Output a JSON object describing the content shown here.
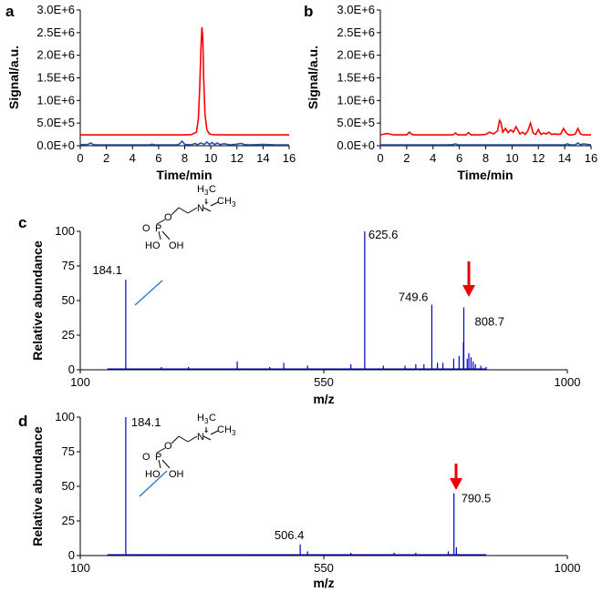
{
  "chart_data": [
    {
      "id": "a",
      "panel_label": "a",
      "type": "line",
      "xlabel": "Time/min",
      "ylabel": "Signal/a.u.",
      "xlim": [
        0,
        16
      ],
      "ylim": [
        0,
        3000000
      ],
      "x_ticks": [
        "0",
        "2",
        "4",
        "6",
        "8",
        "10",
        "12",
        "14",
        "16"
      ],
      "y_ticks": [
        "0.0E+0",
        "5.0E+5",
        "1.0E+6",
        "1.5E+6",
        "2.0E+6",
        "2.5E+6",
        "3.0E+6"
      ],
      "grid": false,
      "series": [
        {
          "color": "#ff0000",
          "x": [
            0,
            7,
            8,
            8.5,
            8.9,
            9.05,
            9.15,
            9.25,
            9.32,
            9.38,
            9.45,
            9.55,
            9.7,
            9.9,
            10.2,
            11,
            16
          ],
          "y": [
            240000,
            240000,
            240000,
            245000,
            300000,
            600000,
            1300000,
            2200000,
            2620000,
            2400000,
            1500000,
            700000,
            350000,
            260000,
            242000,
            240000,
            240000
          ]
        },
        {
          "color": "#2255aa",
          "x": [
            0,
            0.6,
            0.8,
            1.0,
            1.3,
            2,
            3,
            4,
            5.3,
            5.5,
            5.7,
            6,
            7.4,
            7.6,
            7.8,
            8.0,
            8.5,
            8.8,
            9.0,
            9.2,
            9.5,
            9.7,
            9.9,
            10.1,
            10.3,
            10.5,
            10.7,
            11.0,
            11.5,
            12.0,
            12.3,
            12.6,
            13,
            14,
            15,
            16
          ],
          "y": [
            25000,
            30000,
            60000,
            25000,
            20000,
            20000,
            20000,
            20000,
            20000,
            35000,
            20000,
            20000,
            20000,
            40000,
            100000,
            30000,
            20000,
            50000,
            20000,
            60000,
            30000,
            80000,
            30000,
            70000,
            25000,
            60000,
            25000,
            45000,
            20000,
            35000,
            50000,
            25000,
            20000,
            30000,
            20000,
            20000
          ]
        }
      ]
    },
    {
      "id": "b",
      "panel_label": "b",
      "type": "line",
      "xlabel": "Time/min",
      "ylabel": "Signal/a.u.",
      "xlim": [
        0,
        16
      ],
      "ylim": [
        0,
        3000000
      ],
      "x_ticks": [
        "0",
        "2",
        "4",
        "6",
        "8",
        "10",
        "12",
        "14",
        "16"
      ],
      "y_ticks": [
        "0.0E+0",
        "5.0E+5",
        "1.0E+6",
        "1.5E+6",
        "2.0E+6",
        "2.5E+6",
        "3.0E+6"
      ],
      "grid": false,
      "series": [
        {
          "color": "#ff0000",
          "x": [
            0,
            0.5,
            1,
            2,
            2.2,
            2.4,
            2.6,
            3,
            5.5,
            5.7,
            5.9,
            6.5,
            6.7,
            6.9,
            7.5,
            8.0,
            8.3,
            8.6,
            8.9,
            9.05,
            9.15,
            9.3,
            9.5,
            9.7,
            9.9,
            10.1,
            10.3,
            10.6,
            10.8,
            11,
            11.2,
            11.4,
            11.6,
            11.8,
            12,
            12.2,
            12.4,
            12.6,
            12.8,
            13.0,
            13.2,
            13.5,
            13.7,
            13.9,
            14.1,
            14.3,
            14.6,
            14.8,
            15.0,
            15.2,
            15.4,
            16
          ],
          "y": [
            240000,
            270000,
            240000,
            240000,
            300000,
            250000,
            240000,
            240000,
            240000,
            280000,
            240000,
            240000,
            290000,
            240000,
            240000,
            250000,
            300000,
            260000,
            330000,
            560000,
            520000,
            300000,
            380000,
            290000,
            350000,
            300000,
            420000,
            260000,
            300000,
            250000,
            330000,
            500000,
            280000,
            250000,
            360000,
            250000,
            280000,
            260000,
            300000,
            250000,
            260000,
            250000,
            260000,
            380000,
            290000,
            240000,
            240000,
            260000,
            380000,
            260000,
            240000,
            240000
          ]
        },
        {
          "color": "#2255aa",
          "x": [
            0,
            1,
            2,
            3,
            4,
            5,
            5.5,
            5.7,
            5.9,
            6.5,
            7,
            8,
            9,
            10,
            11,
            12,
            13,
            14,
            14.2,
            14.4,
            14.8,
            15.0,
            15.2,
            15.4,
            16
          ],
          "y": [
            20000,
            20000,
            20000,
            20000,
            20000,
            20000,
            25000,
            40000,
            20000,
            20000,
            20000,
            20000,
            20000,
            20000,
            20000,
            20000,
            20000,
            20000,
            40000,
            20000,
            20000,
            60000,
            20000,
            40000,
            20000
          ]
        }
      ]
    },
    {
      "id": "c",
      "panel_label": "c",
      "type": "bar",
      "xlabel": "m/z",
      "ylabel": "Relative abundance",
      "xlim": [
        100,
        1000
      ],
      "ylim": [
        0,
        100
      ],
      "x_ticks": [
        "100",
        "550",
        "1000"
      ],
      "y_ticks": [
        "0",
        "25",
        "50",
        "75",
        "100"
      ],
      "grid": false,
      "color": "#0000bb",
      "peaks": {
        "mz": [
          184.1,
          625.6,
          749.6,
          808.7,
          808.0,
          800.0,
          770.0,
          815.0,
          818.0,
          822.0,
          826.0,
          830.0,
          476.0,
          390.0,
          520.0,
          600.0,
          660.0,
          700.0,
          720.0,
          735.0,
          760.0,
          790.0,
          840.0,
          850.0,
          300.0,
          250.0,
          450.0
        ],
        "intensity": [
          65,
          100,
          47,
          45,
          20,
          10,
          5,
          8,
          12,
          9,
          6,
          4,
          5,
          6,
          3,
          4,
          3,
          3,
          4,
          4,
          5,
          8,
          3,
          2,
          2,
          2,
          2
        ]
      },
      "labels": [
        {
          "mz": 184.1,
          "text": "184.1"
        },
        {
          "mz": 625.6,
          "text": "625.6"
        },
        {
          "mz": 749.6,
          "text": "749.6"
        },
        {
          "mz": 808.7,
          "text": "808.7"
        }
      ]
    },
    {
      "id": "d",
      "panel_label": "d",
      "type": "bar",
      "xlabel": "m/z",
      "ylabel": "Relative abundance",
      "xlim": [
        100,
        1000
      ],
      "ylim": [
        0,
        100
      ],
      "x_ticks": [
        "100",
        "550",
        "1000"
      ],
      "y_ticks": [
        "0",
        "25",
        "50",
        "75",
        "100"
      ],
      "grid": false,
      "color": "#0000bb",
      "peaks": {
        "mz": [
          184.1,
          506.4,
          790.5,
          780.0,
          795.0,
          520.0,
          600.0,
          680.0,
          250.0,
          400.0,
          720.0
        ],
        "intensity": [
          100,
          8,
          45,
          3,
          6,
          3,
          2,
          2,
          1,
          1,
          2
        ]
      },
      "labels": [
        {
          "mz": 184.1,
          "text": "184.1"
        },
        {
          "mz": 506.4,
          "text": "506.4"
        },
        {
          "mz": 790.5,
          "text": "790.5"
        }
      ]
    }
  ],
  "structure_labels": {
    "o_top": "O",
    "o_double": "O",
    "p": "P",
    "ho": "HO",
    "oh": "OH",
    "h3c": "H",
    "h3c_sub": "3",
    "h3c_c": "C",
    "n": "N",
    "n_charge": "+",
    "ch3": "CH",
    "ch3_sub": "3"
  },
  "arrow_color": "#ee0000",
  "pointer_line_color": "#2f7fd0"
}
